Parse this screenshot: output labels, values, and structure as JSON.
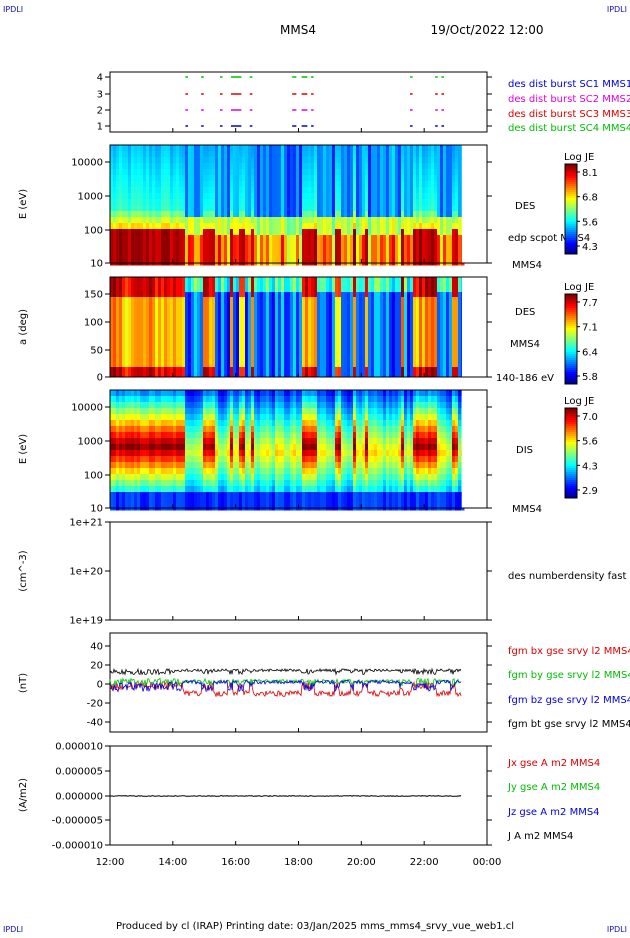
{
  "header": {
    "corner_left_top": "IPDLI",
    "corner_right_top": "IPDLI",
    "corner_left_bottom": "IPDLI",
    "corner_right_bottom": "IPDLI",
    "spacecraft": "MMS4",
    "date_time": "19/Oct/2022 12:00"
  },
  "footer": {
    "text": "Produced by cl (IRAP)   Printing date: 03/Jan/2025   mms_mms4_srvy_vue_web1.cl"
  },
  "time_axis": {
    "ticks": [
      "12:00",
      "14:00",
      "16:00",
      "18:00",
      "20:00",
      "22:00",
      "00:00"
    ],
    "hours": [
      0,
      2,
      4,
      6,
      8,
      10,
      12
    ],
    "data_end_hour": 11.2
  },
  "colors": {
    "red": "#e00000",
    "green": "#00c000",
    "blue": "#0000e0",
    "magenta": "#e000e0",
    "black": "#000000",
    "corner": "#1010c0"
  },
  "chart_data": [
    {
      "type": "scatter",
      "id": "burst",
      "yticks": [
        "4",
        "3",
        "2",
        "1"
      ],
      "ylim": [
        0.5,
        4.5
      ],
      "labels": [
        {
          "text": "des dist burst SC1 MMS1",
          "color": "#0000e0"
        },
        {
          "text": "des dist burst SC2 MMS2",
          "color": "#e000e0"
        },
        {
          "text": "des dist burst SC3 MMS3",
          "color": "#e00000"
        },
        {
          "text": "des dist burst SC4 MMS4",
          "color": "#00c000"
        }
      ],
      "rows": [
        {
          "y": 4,
          "color": "#00c000",
          "segments": [
            [
              2.4,
              2.45
            ],
            [
              2.9,
              2.95
            ],
            [
              3.5,
              3.55
            ],
            [
              3.85,
              4.15
            ],
            [
              4.45,
              4.5
            ],
            [
              5.8,
              5.9
            ],
            [
              6.1,
              6.25
            ],
            [
              6.4,
              6.45
            ],
            [
              9.55,
              9.6
            ],
            [
              10.35,
              10.4
            ],
            [
              10.55,
              10.6
            ]
          ]
        },
        {
          "y": 3,
          "color": "#e00000",
          "segments": [
            [
              2.4,
              2.45
            ],
            [
              2.9,
              2.95
            ],
            [
              3.5,
              3.55
            ],
            [
              3.85,
              4.15
            ],
            [
              4.45,
              4.5
            ],
            [
              5.8,
              5.9
            ],
            [
              6.1,
              6.25
            ],
            [
              6.4,
              6.45
            ],
            [
              9.55,
              9.6
            ],
            [
              10.35,
              10.4
            ],
            [
              10.55,
              10.6
            ]
          ]
        },
        {
          "y": 2,
          "color": "#e000e0",
          "segments": [
            [
              2.4,
              2.45
            ],
            [
              2.9,
              2.95
            ],
            [
              3.5,
              3.55
            ],
            [
              3.85,
              4.15
            ],
            [
              4.45,
              4.5
            ],
            [
              5.8,
              5.9
            ],
            [
              6.1,
              6.25
            ],
            [
              6.4,
              6.45
            ],
            [
              9.55,
              9.6
            ],
            [
              10.35,
              10.4
            ],
            [
              10.55,
              10.6
            ]
          ]
        },
        {
          "y": 1,
          "color": "#0000e0",
          "segments": [
            [
              2.4,
              2.45
            ],
            [
              2.9,
              2.95
            ],
            [
              3.5,
              3.55
            ],
            [
              3.85,
              4.15
            ],
            [
              4.45,
              4.5
            ],
            [
              5.8,
              5.9
            ],
            [
              6.1,
              6.25
            ],
            [
              6.4,
              6.45
            ],
            [
              9.55,
              9.6
            ],
            [
              10.35,
              10.4
            ],
            [
              10.55,
              10.6
            ]
          ]
        }
      ]
    },
    {
      "type": "heatmap",
      "id": "des_energy",
      "ylabel": "E (eV)",
      "yticks": [
        "10000",
        "1000",
        "100",
        "10"
      ],
      "ylim": [
        10,
        30000
      ],
      "yscale": "log",
      "instrument": "DES",
      "side_label": "edp scpot MMS4",
      "spacecraft": "MMS4",
      "colorbar": {
        "title": "Log JE",
        "ticks": [
          "8.1",
          "6.8",
          "5.6",
          "4.3"
        ],
        "range": [
          4.3,
          8.1
        ]
      }
    },
    {
      "type": "heatmap",
      "id": "des_pitch",
      "ylabel": "a (deg)",
      "yticks": [
        "150",
        "100",
        "50",
        "0"
      ],
      "ylim": [
        0,
        180
      ],
      "instrument": "DES",
      "spacecraft": "MMS4",
      "energy_range": "140-186 eV",
      "colorbar": {
        "title": "Log JE",
        "ticks": [
          "7.7",
          "7.1",
          "6.4",
          "5.8"
        ],
        "range": [
          5.8,
          7.7
        ]
      }
    },
    {
      "type": "heatmap",
      "id": "dis_energy",
      "ylabel": "E (eV)",
      "yticks": [
        "10000",
        "1000",
        "100",
        "10"
      ],
      "ylim": [
        10,
        30000
      ],
      "yscale": "log",
      "instrument": "DIS",
      "spacecraft": "MMS4",
      "colorbar": {
        "title": "Log JE",
        "ticks": [
          "7.0",
          "5.6",
          "4.3",
          "2.9"
        ],
        "range": [
          2.9,
          7.0
        ]
      }
    },
    {
      "type": "line",
      "id": "density",
      "ylabel": "(cm^-3)",
      "yticks": [
        "1e+21",
        "1e+20",
        "1e+19"
      ],
      "ylim": [
        1e+19,
        1e+21
      ],
      "yscale": "log",
      "series": [
        {
          "name": "des numberdensity fast M",
          "color": "#000000",
          "values": []
        }
      ]
    },
    {
      "type": "line",
      "id": "fgm",
      "ylabel": "(nT)",
      "yticks": [
        "40",
        "20",
        "0",
        "-20",
        "-40"
      ],
      "ylim": [
        -50,
        50
      ],
      "series": [
        {
          "name": "fgm bx gse srvy l2 MMS4",
          "color": "#e00000"
        },
        {
          "name": "fgm by gse srvy l2 MMS4",
          "color": "#00c000"
        },
        {
          "name": "fgm bz gse srvy l2 MMS4",
          "color": "#0000e0"
        },
        {
          "name": "fgm bt gse srvy l2 MMS4",
          "color": "#000000"
        }
      ]
    },
    {
      "type": "line",
      "id": "current",
      "ylabel": "(A/m2)",
      "yticks": [
        "0.000010",
        "0.000005",
        "0.000000",
        "-0.000005",
        "-0.000010"
      ],
      "ylim": [
        -1e-05,
        1e-05
      ],
      "series": [
        {
          "name": "Jx gse A m2 MMS4",
          "color": "#e00000"
        },
        {
          "name": "Jy gse A m2 MMS4",
          "color": "#00c000"
        },
        {
          "name": "Jz gse A m2 MMS4",
          "color": "#0000e0"
        },
        {
          "name": "J A m2 MMS4",
          "color": "#000000"
        }
      ]
    }
  ]
}
